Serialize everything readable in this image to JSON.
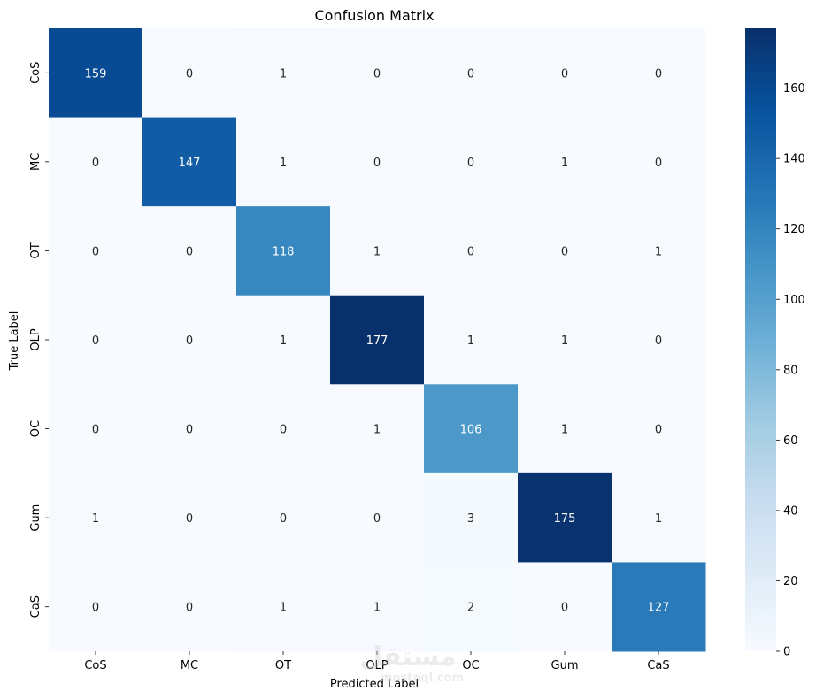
{
  "chart_data": {
    "type": "heatmap",
    "title": "Confusion Matrix",
    "xlabel": "Predicted Label",
    "ylabel": "True Label",
    "x_categories": [
      "CoS",
      "MC",
      "OT",
      "OLP",
      "OC",
      "Gum",
      "CaS"
    ],
    "y_categories": [
      "CoS",
      "MC",
      "OT",
      "OLP",
      "OC",
      "Gum",
      "CaS"
    ],
    "values": [
      [
        159,
        0,
        1,
        0,
        0,
        0,
        0
      ],
      [
        0,
        147,
        1,
        0,
        0,
        1,
        0
      ],
      [
        0,
        0,
        118,
        1,
        0,
        0,
        1
      ],
      [
        0,
        0,
        1,
        177,
        1,
        1,
        0
      ],
      [
        0,
        0,
        0,
        1,
        106,
        1,
        0
      ],
      [
        1,
        0,
        0,
        0,
        3,
        175,
        1
      ],
      [
        0,
        0,
        1,
        1,
        2,
        0,
        127
      ]
    ],
    "colormap": "Blues",
    "colorbar": {
      "min": 0,
      "max": 177,
      "ticks": [
        0,
        20,
        40,
        60,
        80,
        100,
        120,
        140,
        160
      ]
    }
  },
  "watermark": {
    "text": "مستقل",
    "subtext": "mostaql.com"
  }
}
